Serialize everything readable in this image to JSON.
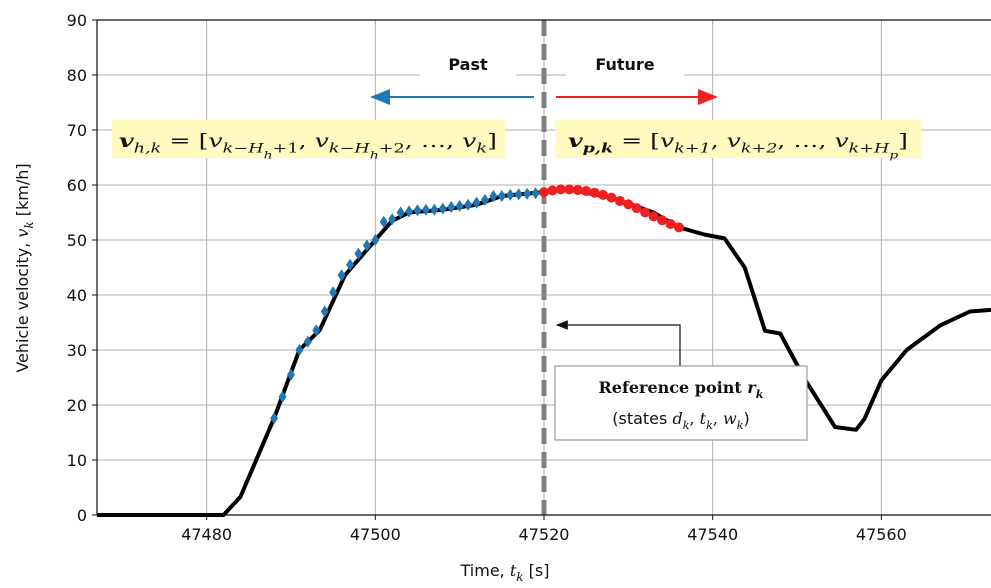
{
  "chart_data": {
    "type": "line",
    "xlabel": [
      {
        "text": "Time, "
      },
      {
        "text": "t",
        "style": "i",
        "font": "serif"
      },
      {
        "text": "k",
        "sub": 1,
        "style": "i",
        "font": "serif"
      },
      {
        "text": " [s]"
      }
    ],
    "ylabel": [
      {
        "text": "Vehicle velocity, "
      },
      {
        "text": "v",
        "style": "i",
        "font": "serif"
      },
      {
        "text": "k",
        "sub": 1,
        "style": "i",
        "font": "serif"
      },
      {
        "text": " [km/h]"
      }
    ],
    "xlim": [
      47467,
      47573
    ],
    "ylim": [
      0,
      90
    ],
    "xticks": [
      47480,
      47500,
      47520,
      47540,
      47560
    ],
    "yticks": [
      0,
      10,
      20,
      30,
      40,
      50,
      60,
      70,
      80,
      90
    ],
    "grid": true,
    "reference_x": 47520,
    "series": [
      {
        "color": "#000000",
        "marker": "line",
        "x": [
          47467,
          47482,
          47484,
          47488,
          47491,
          47493.4,
          47496.4,
          47500,
          47502,
          47504,
          47508,
          47512,
          47515,
          47520,
          47523,
          47528,
          47533,
          47536,
          47539,
          47541.4,
          47543.8,
          47546.2,
          47548,
          47551,
          47554.5,
          47557,
          47558,
          47560,
          47563,
          47567,
          47570.5,
          47573
        ],
        "values": [
          0,
          0,
          3.3,
          17.6,
          30,
          33.6,
          43.6,
          50,
          53.5,
          55,
          55.5,
          56.4,
          58,
          58.7,
          59.2,
          57.7,
          55,
          52.3,
          51,
          50.3,
          45,
          33.5,
          33,
          24.5,
          16,
          15.5,
          17.5,
          24.5,
          30,
          34.5,
          37,
          37.3
        ]
      },
      {
        "color": "#1f77b4",
        "marker": "diamond",
        "x": [
          47488,
          47489,
          47490,
          47491,
          47492,
          47493,
          47494,
          47495,
          47496,
          47497,
          47498,
          47499,
          47500,
          47501,
          47502,
          47503,
          47504,
          47505,
          47506,
          47507,
          47508,
          47509,
          47510,
          47511,
          47512,
          47513,
          47514,
          47515,
          47516,
          47517,
          47518,
          47519,
          47520
        ],
        "values": [
          17.6,
          21.5,
          25.5,
          30,
          31.5,
          33.6,
          37,
          40.5,
          43.6,
          45.5,
          47.5,
          49,
          50,
          53.3,
          53.8,
          55,
          55.2,
          55.4,
          55.5,
          55.5,
          55.7,
          56,
          56.2,
          56.4,
          56.8,
          57.3,
          58,
          58,
          58.2,
          58.3,
          58.4,
          58.5,
          58.6
        ]
      },
      {
        "color": "#f02020",
        "marker": "circle",
        "x": [
          47520,
          47521,
          47522,
          47523,
          47524,
          47525,
          47526,
          47527,
          47528,
          47529,
          47530,
          47531,
          47532,
          47533,
          47534,
          47535,
          47536
        ],
        "values": [
          58.7,
          59,
          59.2,
          59.2,
          59.1,
          58.9,
          58.6,
          58.2,
          57.7,
          57.1,
          56.5,
          55.8,
          55,
          54.3,
          53.6,
          52.9,
          52.3
        ]
      }
    ],
    "annotations": {
      "past": "Past",
      "future": "Future",
      "history_formula": [
        {
          "text": "v",
          "style": "bi"
        },
        {
          "text": "h,k",
          "sub": 1,
          "style": "i"
        },
        {
          "text": " = ["
        },
        {
          "text": "v",
          "style": "i"
        },
        {
          "text": "k−H",
          "sub": 1,
          "style": "i"
        },
        {
          "text": "h",
          "sub": 2,
          "style": "i"
        },
        {
          "text": "+1",
          "sub": 1
        },
        {
          "text": ", "
        },
        {
          "text": "v",
          "style": "i"
        },
        {
          "text": "k−H",
          "sub": 1,
          "style": "i"
        },
        {
          "text": "h",
          "sub": 2,
          "style": "i"
        },
        {
          "text": "+2",
          "sub": 1
        },
        {
          "text": ", …, "
        },
        {
          "text": "v",
          "style": "i"
        },
        {
          "text": "k",
          "sub": 1,
          "style": "i"
        },
        {
          "text": "]"
        }
      ],
      "prediction_formula": [
        {
          "text": "v",
          "style": "bi"
        },
        {
          "text": "p,k",
          "sub": 1,
          "style": "bi"
        },
        {
          "text": " = ["
        },
        {
          "text": "v",
          "style": "i"
        },
        {
          "text": "k+1",
          "sub": 1,
          "style": "i"
        },
        {
          "text": ", "
        },
        {
          "text": "v",
          "style": "i"
        },
        {
          "text": "k+2",
          "sub": 1,
          "style": "i"
        },
        {
          "text": ", …, "
        },
        {
          "text": "v",
          "style": "i"
        },
        {
          "text": "k+H",
          "sub": 1,
          "style": "i"
        },
        {
          "text": "p",
          "sub": 2,
          "style": "i"
        },
        {
          "text": "]"
        }
      ],
      "reference_title": [
        {
          "text": "Reference point ",
          "style": "b"
        },
        {
          "text": "r",
          "style": "bi"
        },
        {
          "text": "k",
          "sub": 1,
          "style": "bi"
        }
      ],
      "reference_states": [
        {
          "text": "(states ",
          "font": "sans"
        },
        {
          "text": "d",
          "style": "i"
        },
        {
          "text": "k",
          "sub": 1,
          "style": "i"
        },
        {
          "text": ", "
        },
        {
          "text": "t",
          "style": "i"
        },
        {
          "text": "k",
          "sub": 1,
          "style": "i"
        },
        {
          "text": ", "
        },
        {
          "text": "w",
          "style": "i"
        },
        {
          "text": "k",
          "sub": 1,
          "style": "i"
        },
        {
          "text": ")",
          "font": "sans"
        }
      ]
    }
  }
}
